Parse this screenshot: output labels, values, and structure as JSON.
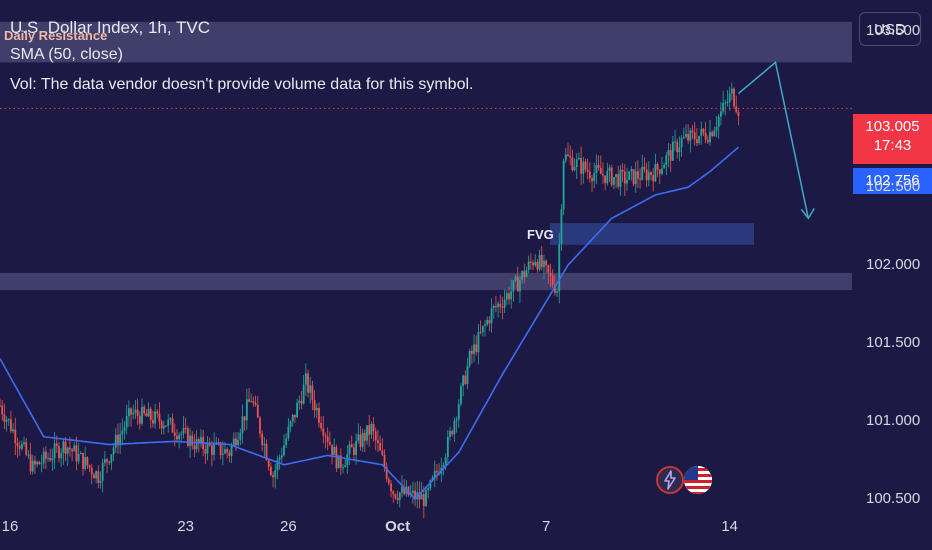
{
  "header": {
    "symbol_line": "U.S. Dollar Index, 1h, TVC",
    "sma_line": "SMA (50, close)",
    "vol_line": "Vol: The data vendor doesn't provide volume data for this symbol."
  },
  "currency_button": "USD",
  "price_badges": {
    "last_price": "103.005",
    "countdown": "17:43",
    "sma_value": "102.756"
  },
  "chart_data": {
    "type": "candlestick",
    "title": "U.S. Dollar Index, 1h, TVC",
    "y_ticks": [
      "100.500",
      "101.000",
      "101.500",
      "102.000",
      "102.500",
      "103.500"
    ],
    "ylim": [
      100.43,
      103.7
    ],
    "x_ticks": [
      "16",
      "23",
      "26",
      "Oct",
      "7",
      "14"
    ],
    "last_price": 103.005,
    "sma_last": 102.756,
    "price_path": [
      {
        "bar": 0,
        "close": 101.1
      },
      {
        "bar": 15,
        "close": 100.7
      },
      {
        "bar": 30,
        "close": 100.85
      },
      {
        "bar": 45,
        "close": 100.65
      },
      {
        "bar": 60,
        "close": 101.05
      },
      {
        "bar": 75,
        "close": 101.0
      },
      {
        "bar": 90,
        "close": 100.85
      },
      {
        "bar": 105,
        "close": 100.8
      },
      {
        "bar": 115,
        "close": 101.15
      },
      {
        "bar": 125,
        "close": 100.65
      },
      {
        "bar": 140,
        "close": 101.25
      },
      {
        "bar": 155,
        "close": 100.72
      },
      {
        "bar": 170,
        "close": 100.95
      },
      {
        "bar": 180,
        "close": 100.55
      },
      {
        "bar": 195,
        "close": 100.5
      },
      {
        "bar": 205,
        "close": 100.85
      },
      {
        "bar": 215,
        "close": 101.4
      },
      {
        "bar": 225,
        "close": 101.7
      },
      {
        "bar": 235,
        "close": 101.85
      },
      {
        "bar": 245,
        "close": 102.05
      },
      {
        "bar": 255,
        "close": 101.85
      },
      {
        "bar": 258,
        "close": 102.7
      },
      {
        "bar": 270,
        "close": 102.6
      },
      {
        "bar": 285,
        "close": 102.55
      },
      {
        "bar": 300,
        "close": 102.6
      },
      {
        "bar": 312,
        "close": 102.8
      },
      {
        "bar": 325,
        "close": 102.85
      },
      {
        "bar": 335,
        "close": 103.1
      },
      {
        "bar": 338,
        "close": 103.005
      }
    ],
    "sma_path": [
      {
        "bar": 0,
        "value": 101.4
      },
      {
        "bar": 20,
        "value": 100.9
      },
      {
        "bar": 50,
        "value": 100.85
      },
      {
        "bar": 80,
        "value": 100.87
      },
      {
        "bar": 105,
        "value": 100.85
      },
      {
        "bar": 130,
        "value": 100.72
      },
      {
        "bar": 150,
        "value": 100.78
      },
      {
        "bar": 175,
        "value": 100.72
      },
      {
        "bar": 190,
        "value": 100.5
      },
      {
        "bar": 210,
        "value": 100.8
      },
      {
        "bar": 230,
        "value": 101.3
      },
      {
        "bar": 245,
        "value": 101.65
      },
      {
        "bar": 260,
        "value": 102.0
      },
      {
        "bar": 280,
        "value": 102.3
      },
      {
        "bar": 300,
        "value": 102.45
      },
      {
        "bar": 315,
        "value": 102.5
      },
      {
        "bar": 325,
        "value": 102.6
      },
      {
        "bar": 338,
        "value": 102.756
      }
    ],
    "annotations": [
      {
        "label": "Daily Resistance",
        "from": 103.3,
        "to": 103.56
      },
      {
        "label": "",
        "from": 101.84,
        "to": 101.95
      },
      {
        "label": "FVG",
        "from": 102.13,
        "to": 102.27
      }
    ],
    "projection": [
      {
        "bar": 338,
        "value": 103.1
      },
      {
        "bar": 355,
        "value": 103.3
      },
      {
        "bar": 370,
        "value": 102.3
      }
    ]
  },
  "colors": {
    "background": "#1c1a44",
    "up_candle": "#26a69a",
    "down_candle": "#ef5350",
    "sma_line": "#3d6df3",
    "zone_fill": "#5f5c8a",
    "fvg_fill": "#2c3f86",
    "projection": "#3fa9c9",
    "last_price_badge": "#f23645",
    "sma_badge": "#2962ff"
  },
  "icons": {
    "lightning": "lightning-icon",
    "flag": "us-flag-icon"
  }
}
